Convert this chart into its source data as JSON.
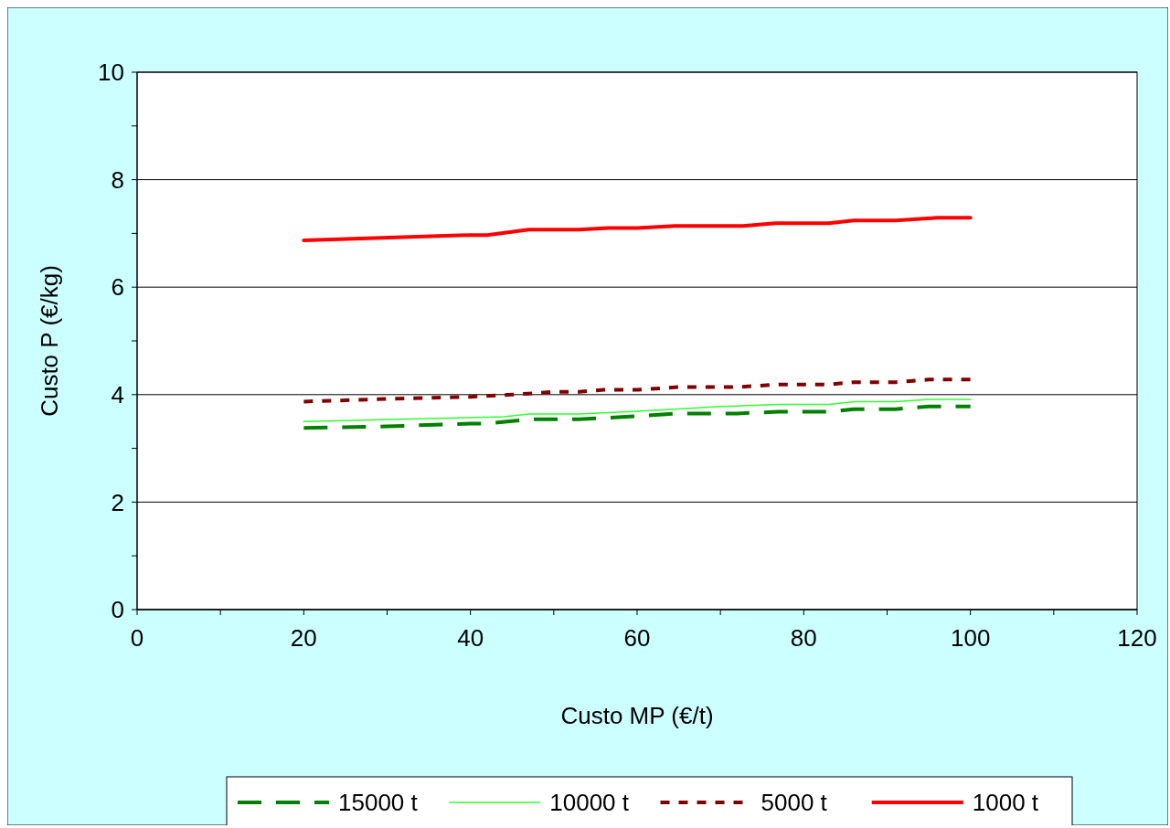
{
  "chart_data": {
    "type": "line",
    "xlabel": "Custo MP (€/t)",
    "ylabel": "Custo P (€/kg)",
    "xlim": [
      0,
      120
    ],
    "ylim": [
      0,
      10
    ],
    "xticks": [
      0,
      {
        "value": 10,
        "label": null
      },
      20,
      {
        "value": 30,
        "label": null
      },
      40,
      {
        "value": 50,
        "label": null
      },
      60,
      {
        "value": 70,
        "label": null
      },
      80,
      {
        "value": 90,
        "label": null
      },
      100,
      {
        "value": 110,
        "label": null
      },
      120
    ],
    "yticks": [
      0,
      {
        "value": 1,
        "label": null
      },
      2,
      {
        "value": 3,
        "label": null
      },
      4,
      {
        "value": 5,
        "label": null
      },
      6,
      {
        "value": 7,
        "label": null
      },
      8,
      {
        "value": 9,
        "label": null
      },
      10
    ],
    "grid": "y",
    "legend": "bottom",
    "marker": "none",
    "series": [
      {
        "name": "15000 t",
        "color": "#008000",
        "line_style": "dashed",
        "x": [
          20,
          30,
          40,
          42,
          47,
          53,
          60,
          65,
          72,
          77,
          83,
          86,
          91,
          95,
          100
        ],
        "values": [
          3.38,
          3.41,
          3.46,
          3.46,
          3.54,
          3.54,
          3.6,
          3.65,
          3.65,
          3.68,
          3.68,
          3.73,
          3.73,
          3.78,
          3.78
        ]
      },
      {
        "name": "10000 t",
        "color": "#33ff33",
        "line_style": "solid",
        "x": [
          20,
          42,
          44,
          47,
          53,
          60,
          69,
          77,
          83,
          86,
          91,
          95,
          100
        ],
        "values": [
          3.5,
          3.58,
          3.59,
          3.64,
          3.64,
          3.69,
          3.77,
          3.82,
          3.82,
          3.87,
          3.87,
          3.91,
          3.91
        ]
      },
      {
        "name": "5000 t",
        "color": "#800000",
        "line_style": "dotted",
        "x": [
          20,
          30,
          40,
          45,
          50,
          53,
          56,
          60,
          65,
          72,
          77,
          83,
          86,
          91,
          95,
          100
        ],
        "values": [
          3.87,
          3.92,
          3.96,
          4.0,
          4.05,
          4.05,
          4.09,
          4.09,
          4.14,
          4.14,
          4.19,
          4.19,
          4.23,
          4.23,
          4.28,
          4.28
        ]
      },
      {
        "name": "1000 t",
        "color": "#ff0000",
        "line_style": "solid",
        "x": [
          20,
          40,
          42,
          47,
          53,
          56.5,
          60,
          64.5,
          72.7,
          76.6,
          83,
          86,
          91,
          96,
          100
        ],
        "values": [
          6.87,
          6.97,
          6.97,
          7.07,
          7.07,
          7.1,
          7.1,
          7.14,
          7.14,
          7.19,
          7.19,
          7.24,
          7.24,
          7.29,
          7.29
        ]
      }
    ]
  }
}
